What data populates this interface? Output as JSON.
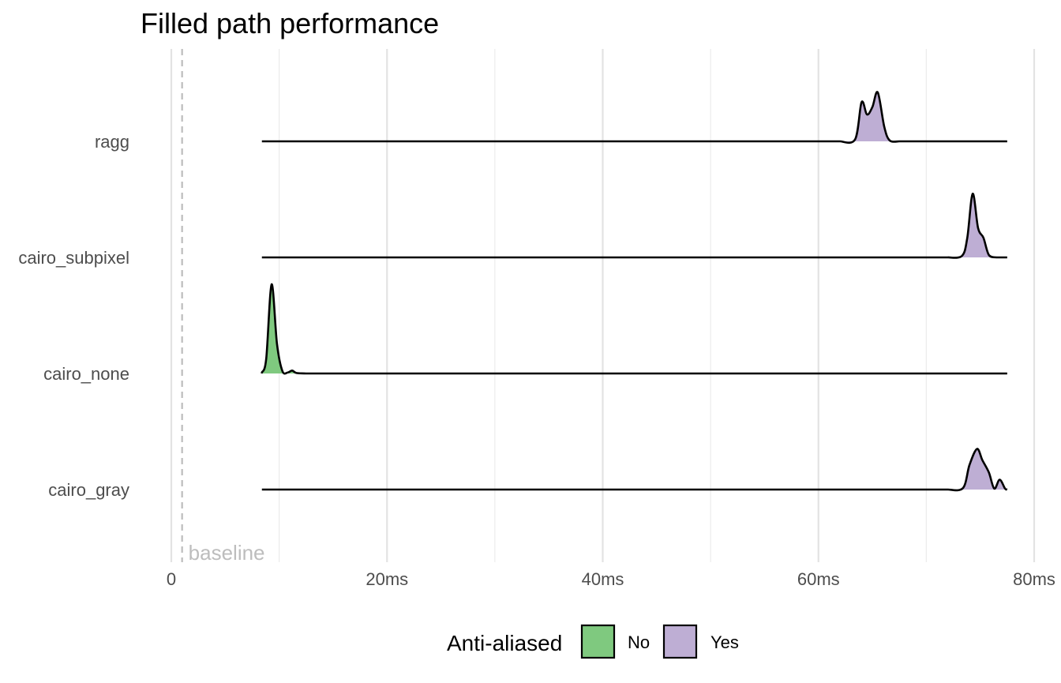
{
  "chart_data": {
    "type": "ridgeline",
    "title": "Filled path performance",
    "xlabel": "",
    "ylabel": "",
    "categories": [
      "ragg",
      "cairo_subpixel",
      "cairo_none",
      "cairo_gray"
    ],
    "xlim": [
      0,
      80
    ],
    "x_ticks": [
      {
        "value": 0,
        "label": "0"
      },
      {
        "value": 20,
        "label": "20ms"
      },
      {
        "value": 40,
        "label": "40ms"
      },
      {
        "value": 60,
        "label": "60ms"
      },
      {
        "value": 80,
        "label": "80ms"
      }
    ],
    "x_minor_ticks": [
      10,
      30,
      50,
      70
    ],
    "grid": "vertical",
    "baseline": {
      "value": 1,
      "label": "baseline"
    },
    "domain": [
      8.4,
      77.5
    ],
    "series": [
      {
        "name": "ragg",
        "antialiased": "Yes",
        "density": [
          [
            62,
            0
          ],
          [
            63.4,
            0.04
          ],
          [
            64,
            0.8
          ],
          [
            64.5,
            0.55
          ],
          [
            65,
            0.7
          ],
          [
            65.5,
            1.0
          ],
          [
            66.1,
            0.3
          ],
          [
            66.6,
            0.02
          ],
          [
            67.5,
            0
          ]
        ]
      },
      {
        "name": "cairo_subpixel",
        "antialiased": "Yes",
        "density": [
          [
            72,
            0
          ],
          [
            73.3,
            0.03
          ],
          [
            73.8,
            0.4
          ],
          [
            74.3,
            1.3
          ],
          [
            74.8,
            0.6
          ],
          [
            75.3,
            0.4
          ],
          [
            75.8,
            0.05
          ],
          [
            76.5,
            0
          ]
        ]
      },
      {
        "name": "cairo_none",
        "antialiased": "No",
        "density": [
          [
            8.4,
            0.02
          ],
          [
            8.8,
            0.3
          ],
          [
            9.3,
            1.82
          ],
          [
            9.8,
            0.6
          ],
          [
            10.3,
            0.05
          ],
          [
            10.8,
            0.02
          ],
          [
            11.2,
            0.06
          ],
          [
            11.6,
            0.01
          ],
          [
            12.5,
            0
          ]
        ]
      },
      {
        "name": "cairo_gray",
        "antialiased": "Yes",
        "density": [
          [
            72,
            0
          ],
          [
            73.4,
            0.03
          ],
          [
            74,
            0.5
          ],
          [
            74.7,
            0.83
          ],
          [
            75.2,
            0.6
          ],
          [
            75.8,
            0.35
          ],
          [
            76.3,
            0.02
          ],
          [
            76.8,
            0.2
          ],
          [
            77.3,
            0.02
          ],
          [
            77.5,
            0
          ]
        ]
      }
    ],
    "legend": {
      "title": "Anti-aliased",
      "position": "bottom",
      "entries": [
        {
          "label": "No",
          "color": "#7fc97f"
        },
        {
          "label": "Yes",
          "color": "#beaed4"
        }
      ]
    },
    "colors": {
      "No": "#7fc97f",
      "Yes": "#beaed4"
    }
  }
}
